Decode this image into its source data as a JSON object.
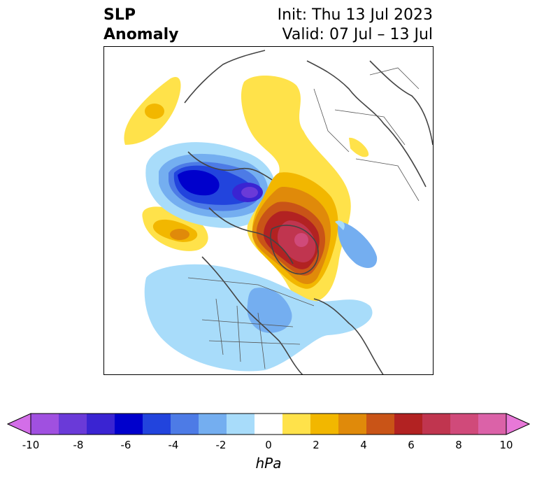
{
  "title": {
    "left_line1": "SLP",
    "left_line2": "Anomaly",
    "right_line1": "Init: Thu 13 Jul 2023",
    "right_line2": "Valid: 07 Jul – 13 Jul"
  },
  "colorbar": {
    "units": "hPa",
    "levels": [
      -10,
      -9,
      -8,
      -7,
      -6,
      -5,
      -4,
      -3,
      -2,
      -1,
      1,
      2,
      3,
      4,
      5,
      6,
      7,
      8,
      9,
      10
    ],
    "colors_under": "#d36ee8",
    "colors_over": "#e878d8",
    "colors": [
      "#d36ee8",
      "#a050e0",
      "#6a3ad8",
      "#3a24d2",
      "#0000cc",
      "#2244dd",
      "#4d7be6",
      "#74aef0",
      "#a8dcfa",
      "#ffffff",
      "#ffe24a",
      "#f2b700",
      "#e08a0a",
      "#c95417",
      "#b22222",
      "#c0354f",
      "#d04a7a",
      "#db62a8",
      "#e878d8"
    ],
    "tick_labels": [
      "-10",
      "-8",
      "-6",
      "-4",
      "-2",
      "0",
      "2",
      "4",
      "6",
      "8",
      "10"
    ],
    "tick_values": [
      -10,
      -8,
      -6,
      -4,
      -2,
      0,
      2,
      4,
      6,
      8,
      10
    ]
  }
}
